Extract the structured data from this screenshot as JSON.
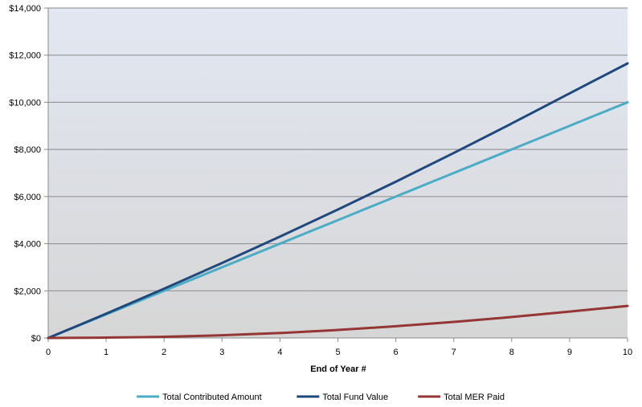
{
  "chart_data": {
    "type": "line",
    "title": "",
    "xlabel": "End of Year #",
    "ylabel": "",
    "x": [
      0,
      1,
      2,
      3,
      4,
      5,
      6,
      7,
      8,
      9,
      10
    ],
    "xlim": [
      0,
      10
    ],
    "ylim": [
      0,
      14000
    ],
    "y_ticks": [
      0,
      2000,
      4000,
      6000,
      8000,
      10000,
      12000,
      14000
    ],
    "y_tick_labels": [
      "$0",
      "$2,000",
      "$4,000",
      "$6,000",
      "$8,000",
      "$10,000",
      "$12,000",
      "$14,000"
    ],
    "x_tick_labels": [
      "0",
      "1",
      "2",
      "3",
      "4",
      "5",
      "6",
      "7",
      "8",
      "9",
      "10"
    ],
    "grid": true,
    "legend_position": "bottom",
    "series": [
      {
        "name": "Total Contributed Amount",
        "color": "#4bacc6",
        "values": [
          0,
          1000,
          2000,
          3000,
          4000,
          5000,
          6000,
          7000,
          8000,
          9000,
          10000
        ]
      },
      {
        "name": "Total Fund Value",
        "color": "#1f497d",
        "values": [
          0,
          1030,
          2090,
          3180,
          4300,
          5450,
          6630,
          7850,
          9100,
          10380,
          11650
        ]
      },
      {
        "name": "Total MER Paid",
        "color": "#943634",
        "values": [
          0,
          15,
          50,
          115,
          210,
          340,
          500,
          680,
          890,
          1120,
          1360
        ]
      }
    ]
  }
}
